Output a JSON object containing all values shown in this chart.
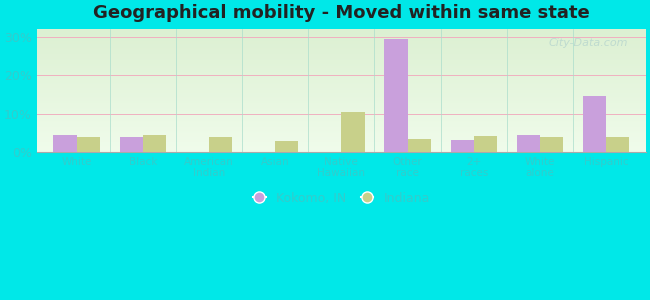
{
  "title": "Geographical mobility - Moved within same state",
  "categories": [
    "White",
    "Black",
    "American\nIndian",
    "Asian",
    "Native\nHawaiian",
    "Other\nrace",
    "2+\nraces",
    "White\nalone",
    "Hispanic"
  ],
  "kokomo": [
    4.5,
    4.0,
    0.0,
    0.0,
    0.0,
    29.5,
    3.0,
    4.5,
    14.5
  ],
  "indiana": [
    3.8,
    4.5,
    4.0,
    2.8,
    10.5,
    3.5,
    4.2,
    4.0,
    4.0
  ],
  "kokomo_color": "#c9a0dc",
  "indiana_color": "#c8d08a",
  "outer_bg": "#00e8e8",
  "ylim": [
    0,
    32
  ],
  "yticks": [
    0,
    10,
    20,
    30
  ],
  "yticklabels": [
    "0%",
    "10%",
    "20%",
    "30%"
  ],
  "legend_kokomo": "Kokomo, IN",
  "legend_indiana": "Indiana",
  "bar_width": 0.35,
  "title_fontsize": 13,
  "tick_color": "#33cccc",
  "watermark": "City-Data.com"
}
